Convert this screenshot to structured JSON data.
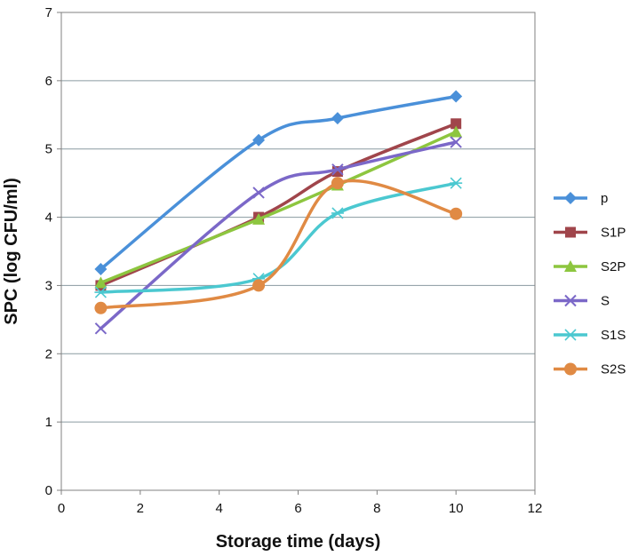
{
  "chart_data": {
    "type": "line",
    "title": "",
    "xlabel": "Storage time (days)",
    "ylabel": "SPC (log CFU/ml)",
    "xlim": [
      0,
      12
    ],
    "ylim": [
      0,
      7
    ],
    "xticks": [
      "0",
      "2",
      "4",
      "6",
      "8",
      "10",
      "12"
    ],
    "yticks": [
      "0",
      "1",
      "2",
      "3",
      "4",
      "5",
      "6",
      "7"
    ],
    "grid": "horizontal",
    "smooth": true,
    "legend_position": "right",
    "x": [
      1,
      5,
      7,
      10
    ],
    "series": [
      {
        "name": "p",
        "values": [
          3.24,
          5.13,
          5.45,
          5.77
        ],
        "color": "#4a90d9",
        "marker": "diamond"
      },
      {
        "name": "S1P",
        "values": [
          3.0,
          4.0,
          4.67,
          5.37
        ],
        "color": "#a0454b",
        "marker": "square"
      },
      {
        "name": "S2P",
        "values": [
          3.04,
          3.97,
          4.47,
          5.25
        ],
        "color": "#8dc63f",
        "marker": "triangle"
      },
      {
        "name": "S",
        "values": [
          2.37,
          4.36,
          4.7,
          5.1
        ],
        "color": "#7b68c8",
        "marker": "x"
      },
      {
        "name": "S1S",
        "values": [
          2.9,
          3.1,
          4.06,
          4.5
        ],
        "color": "#4bc8d0",
        "marker": "asterisk"
      },
      {
        "name": "S2S",
        "values": [
          2.67,
          3.0,
          4.5,
          4.05
        ],
        "color": "#e08a44",
        "marker": "circle"
      }
    ]
  }
}
